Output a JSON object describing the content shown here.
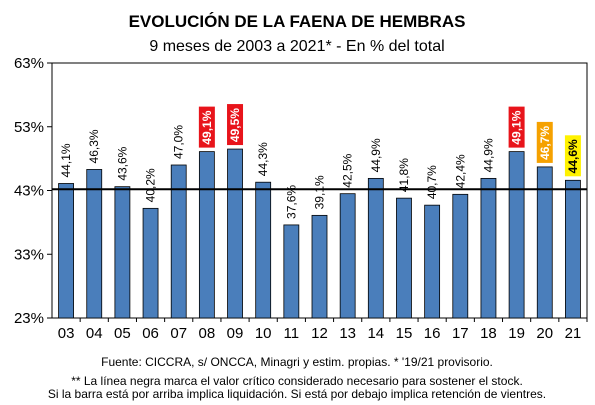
{
  "chart_data": {
    "type": "bar",
    "title": "EVOLUCIÓN DE LA FAENA DE HEMBRAS",
    "subtitle": "9 meses de 2003 a 2021* - En % del total",
    "categories": [
      "03",
      "04",
      "05",
      "06",
      "07",
      "08",
      "09",
      "10",
      "11",
      "12",
      "13",
      "14",
      "15",
      "16",
      "17",
      "18",
      "19",
      "20",
      "21"
    ],
    "values": [
      44.1,
      46.3,
      43.6,
      40.2,
      47.0,
      49.1,
      49.5,
      44.3,
      37.6,
      39.1,
      42.5,
      44.9,
      41.8,
      40.7,
      42.4,
      44.9,
      49.1,
      46.7,
      44.6
    ],
    "labels": [
      "44,1%",
      "46,3%",
      "43,6%",
      "40,2%",
      "47,0%",
      "49,1%",
      "49,5%",
      "44,3%",
      "37,6%",
      "39,1%",
      "42,5%",
      "44,9%",
      "41,8%",
      "40,7%",
      "42,4%",
      "44,9%",
      "49,1%",
      "46,7%",
      "44,6%"
    ],
    "highlight": {
      "5": "#e8141b",
      "6": "#e8141b",
      "16": "#e8141b",
      "17": "#f5a100",
      "18": "#fff200"
    },
    "bar_color": "#4a7ebb",
    "reference_line": 43.2,
    "ylim": [
      23,
      63
    ],
    "yticks": [
      23,
      33,
      43,
      53,
      63
    ],
    "ytick_labels": [
      "23%",
      "33%",
      "43%",
      "53%",
      "63%"
    ],
    "grid": false
  },
  "footnotes": {
    "source": "Fuente: CICCRA, s/ ONCCA, Minagri y estim. propias. * '19/21  provisorio.",
    "note1": "** La línea negra marca el valor crítico considerado necesario para sostener el stock.",
    "note2": "Si la barra está por arriba implica liquidación. Si está por debajo implica retención de vientres."
  }
}
